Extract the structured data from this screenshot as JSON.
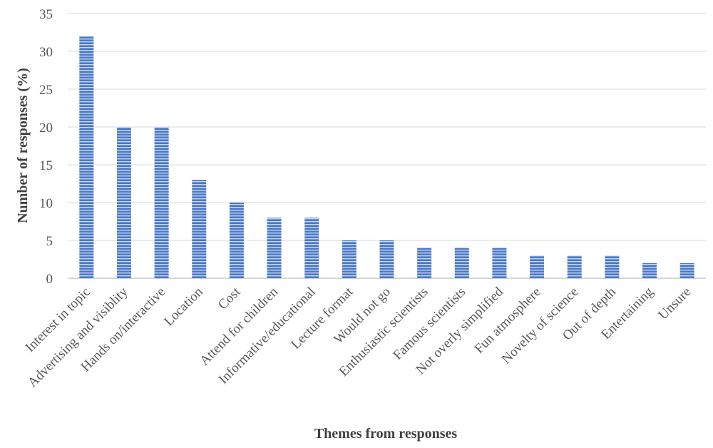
{
  "chart_data": {
    "type": "bar",
    "title": "",
    "xlabel": "Themes from responses",
    "ylabel": "Number of responses (%)",
    "ylim": [
      0,
      35
    ],
    "yticks": [
      0,
      5,
      10,
      15,
      20,
      25,
      30,
      35
    ],
    "grid": true,
    "legend": "none",
    "bar_color": "#4472c4",
    "categories": [
      "Interest in topic",
      "Advertising and visiblity",
      "Hands on/interactive",
      "Location",
      "Cost",
      "Attend for children",
      "Informative/educational",
      "Lecture format",
      "Would not go",
      "Enthusiastic scientists",
      "Famous scientists",
      "Not overly simplified",
      "Fun atmosphere",
      "Novelty of science",
      "Out of depth",
      "Entertaining",
      "Unsure"
    ],
    "values": [
      32,
      20,
      20,
      13,
      10,
      8,
      8,
      5,
      5,
      4,
      4,
      4,
      3,
      3,
      3,
      2,
      2
    ]
  }
}
